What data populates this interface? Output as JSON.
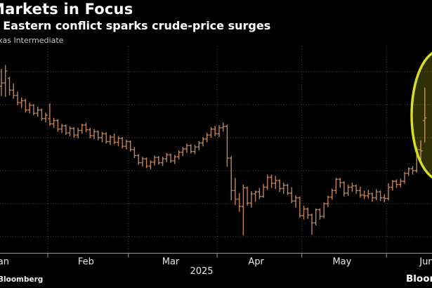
{
  "header": {
    "title": "Markets in Focus",
    "subtitle": "Middle Eastern conflict sparks crude-price surges",
    "legend_label": "West Texas Intermediate"
  },
  "footer": {
    "credit_left": "Bloomberg",
    "logo_right": "Bloomberg"
  },
  "colors": {
    "background": "#000000",
    "bar": "#c08355",
    "highlight": "#d9dc1f",
    "grid": "#5c5248",
    "axis": "#9a9a9a",
    "text": "#ffffff",
    "axis_text": "#e8e8e8",
    "muted_text": "#c9c9c9"
  },
  "chart_data": {
    "type": "ohlc",
    "series_name": "West Texas Intermediate",
    "title": "Markets in Focus",
    "subtitle": "Middle Eastern conflict sparks crude-price surges",
    "x_axis": {
      "year": "2025",
      "months": [
        {
          "name": "Jan",
          "start": -8.5
        },
        {
          "name": "Feb",
          "start": 11.5
        },
        {
          "name": "Mar",
          "start": 31.5
        },
        {
          "name": "Apr",
          "start": 53.5
        },
        {
          "name": "May",
          "start": 74.5
        },
        {
          "name": "Jun",
          "start": 95.5
        }
      ],
      "end_index": 116.5
    },
    "y_axis": {
      "min": 52.5,
      "max": 83.2,
      "gridlines": [
        55,
        60,
        65,
        70,
        75,
        80
      ],
      "labels_visible": false,
      "grid_on": true
    },
    "annotation": {
      "shape": "ellipse",
      "highlights": "June crude-price surge"
    },
    "bars": [
      [
        77.8,
        80.4,
        76.3,
        78.3
      ],
      [
        78.3,
        81.0,
        76.2,
        80.1
      ],
      [
        79.0,
        79.2,
        76.4,
        77.2
      ],
      [
        77.2,
        78.2,
        75.9,
        76.4
      ],
      [
        76.4,
        77.0,
        74.9,
        75.3
      ],
      [
        75.3,
        76.1,
        74.5,
        75.6
      ],
      [
        75.6,
        75.9,
        73.8,
        74.2
      ],
      [
        74.2,
        75.3,
        73.7,
        74.9
      ],
      [
        74.9,
        75.1,
        73.4,
        73.7
      ],
      [
        73.7,
        74.7,
        73.2,
        74.2
      ],
      [
        74.2,
        74.4,
        72.6,
        72.9
      ],
      [
        72.9,
        73.8,
        72.3,
        73.4
      ],
      [
        72.9,
        75.2,
        71.8,
        72.1
      ],
      [
        72.1,
        73.0,
        71.5,
        72.6
      ],
      [
        72.6,
        72.8,
        70.9,
        71.3
      ],
      [
        71.3,
        72.1,
        70.7,
        71.8
      ],
      [
        71.8,
        72.0,
        70.4,
        70.7
      ],
      [
        70.7,
        71.7,
        70.2,
        71.4
      ],
      [
        71.4,
        71.6,
        70.0,
        70.4
      ],
      [
        70.4,
        71.5,
        69.9,
        71.1
      ],
      [
        71.1,
        72.1,
        70.6,
        71.9
      ],
      [
        71.9,
        72.3,
        70.8,
        71.2
      ],
      [
        71.2,
        71.5,
        69.9,
        70.3
      ],
      [
        70.3,
        71.3,
        69.8,
        70.9
      ],
      [
        70.9,
        71.1,
        69.6,
        70.0
      ],
      [
        70.0,
        70.9,
        69.3,
        70.6
      ],
      [
        70.6,
        70.8,
        69.1,
        69.4
      ],
      [
        69.4,
        70.4,
        68.9,
        70.1
      ],
      [
        70.1,
        70.6,
        69.0,
        69.3
      ],
      [
        69.3,
        70.2,
        68.7,
        69.9
      ],
      [
        69.9,
        70.1,
        68.4,
        68.7
      ],
      [
        68.7,
        69.7,
        68.2,
        69.4
      ],
      [
        69.4,
        69.6,
        67.9,
        68.2
      ],
      [
        68.2,
        68.6,
        66.9,
        67.3
      ],
      [
        67.3,
        67.5,
        65.9,
        66.2
      ],
      [
        66.2,
        67.1,
        65.6,
        66.8
      ],
      [
        66.8,
        67.0,
        65.4,
        65.7
      ],
      [
        65.7,
        66.6,
        65.2,
        66.3
      ],
      [
        66.3,
        67.3,
        65.8,
        67.0
      ],
      [
        67.0,
        67.2,
        65.9,
        66.2
      ],
      [
        66.2,
        67.1,
        65.7,
        66.8
      ],
      [
        66.8,
        67.7,
        66.3,
        67.4
      ],
      [
        67.4,
        67.6,
        66.2,
        66.5
      ],
      [
        66.5,
        67.4,
        66.0,
        67.1
      ],
      [
        67.1,
        68.1,
        66.7,
        67.8
      ],
      [
        67.8,
        68.6,
        67.2,
        68.3
      ],
      [
        68.3,
        69.1,
        67.7,
        68.8
      ],
      [
        68.8,
        69.0,
        67.6,
        67.9
      ],
      [
        67.9,
        68.9,
        67.5,
        68.6
      ],
      [
        68.6,
        69.5,
        68.1,
        69.2
      ],
      [
        69.2,
        70.1,
        68.7,
        69.8
      ],
      [
        69.8,
        70.7,
        69.3,
        70.4
      ],
      [
        70.4,
        71.6,
        70.0,
        71.3
      ],
      [
        71.3,
        71.8,
        70.2,
        70.6
      ],
      [
        70.6,
        71.9,
        70.1,
        71.5
      ],
      [
        71.5,
        72.3,
        70.9,
        71.7
      ],
      [
        71.7,
        72.0,
        65.6,
        66.9
      ],
      [
        66.9,
        67.2,
        60.5,
        62.0
      ],
      [
        62.0,
        63.9,
        59.8,
        60.7
      ],
      [
        60.7,
        61.6,
        58.8,
        59.6
      ],
      [
        59.6,
        62.9,
        55.2,
        62.4
      ],
      [
        62.4,
        62.6,
        59.7,
        60.1
      ],
      [
        60.1,
        61.9,
        59.4,
        61.5
      ],
      [
        61.5,
        62.0,
        60.3,
        61.8
      ],
      [
        61.8,
        62.4,
        60.7,
        61.1
      ],
      [
        61.1,
        63.0,
        60.9,
        62.5
      ],
      [
        62.5,
        64.4,
        62.1,
        64.0
      ],
      [
        64.0,
        64.4,
        62.4,
        63.1
      ],
      [
        63.1,
        64.2,
        62.2,
        63.5
      ],
      [
        63.5,
        63.7,
        61.8,
        62.3
      ],
      [
        62.3,
        63.2,
        61.5,
        62.8
      ],
      [
        62.8,
        63.0,
        61.3,
        61.6
      ],
      [
        61.6,
        62.5,
        60.1,
        60.4
      ],
      [
        60.4,
        61.3,
        59.4,
        60.9
      ],
      [
        60.9,
        61.1,
        57.9,
        58.2
      ],
      [
        58.2,
        59.7,
        57.6,
        59.2
      ],
      [
        59.2,
        59.4,
        57.7,
        58.3
      ],
      [
        58.3,
        58.5,
        55.3,
        57.1
      ],
      [
        57.1,
        59.3,
        56.7,
        59.1
      ],
      [
        59.1,
        59.3,
        57.6,
        58.1
      ],
      [
        58.1,
        60.2,
        57.8,
        60.0
      ],
      [
        60.0,
        61.2,
        59.5,
        61.0
      ],
      [
        61.0,
        62.3,
        60.6,
        62.0
      ],
      [
        62.0,
        63.9,
        61.5,
        63.7
      ],
      [
        63.7,
        63.9,
        62.4,
        63.2
      ],
      [
        63.2,
        63.4,
        61.1,
        61.6
      ],
      [
        61.6,
        62.9,
        61.2,
        62.5
      ],
      [
        62.5,
        63.2,
        61.8,
        62.7
      ],
      [
        62.7,
        62.9,
        61.5,
        62.0
      ],
      [
        62.0,
        62.6,
        60.9,
        61.3
      ],
      [
        61.3,
        62.0,
        60.7,
        61.2
      ],
      [
        61.2,
        62.1,
        60.8,
        61.5
      ],
      [
        61.5,
        61.7,
        60.3,
        60.9
      ],
      [
        60.9,
        62.2,
        60.5,
        61.8
      ],
      [
        61.8,
        62.0,
        60.4,
        60.9
      ],
      [
        60.9,
        61.4,
        60.2,
        60.8
      ],
      [
        60.8,
        63.1,
        60.5,
        62.5
      ],
      [
        62.5,
        63.6,
        62.0,
        63.4
      ],
      [
        63.4,
        63.7,
        62.4,
        62.9
      ],
      [
        62.9,
        63.8,
        62.5,
        63.4
      ],
      [
        63.4,
        64.8,
        63.0,
        64.6
      ],
      [
        64.6,
        65.5,
        64.2,
        65.3
      ],
      [
        65.3,
        65.7,
        64.4,
        65.0
      ],
      [
        65.0,
        68.6,
        64.7,
        68.2
      ],
      [
        68.2,
        69.6,
        66.4,
        68.0
      ],
      [
        72.6,
        77.6,
        69.3,
        73.0
      ]
    ]
  }
}
